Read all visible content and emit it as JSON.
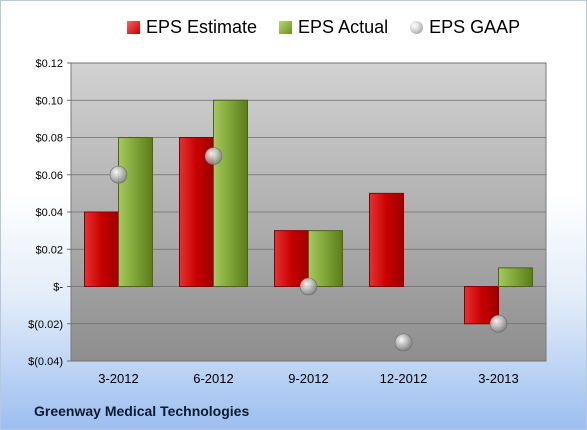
{
  "chart_data": {
    "type": "bar",
    "categories": [
      "3-2012",
      "6-2012",
      "9-2012",
      "12-2012",
      "3-2013"
    ],
    "series": [
      {
        "name": "EPS Estimate",
        "kind": "bar",
        "color": "#c00000",
        "values": [
          0.04,
          0.08,
          0.03,
          0.05,
          -0.02
        ]
      },
      {
        "name": "EPS Actual",
        "kind": "bar",
        "color": "#6a8f22",
        "values": [
          0.08,
          0.1,
          0.03,
          null,
          0.01
        ]
      },
      {
        "name": "EPS GAAP",
        "kind": "scatter",
        "color": "#a0a0a0",
        "values": [
          0.06,
          0.07,
          0.0,
          -0.03,
          -0.02
        ]
      }
    ],
    "ylim": [
      -0.04,
      0.12
    ],
    "yticks": [
      -0.04,
      -0.02,
      0,
      0.02,
      0.04,
      0.06,
      0.08,
      0.1,
      0.12
    ],
    "ytick_labels": [
      "$(0.04)",
      "$(0.02)",
      "$-",
      "$0.02",
      "$0.04",
      "$0.06",
      "$0.08",
      "$0.10",
      "$0.12"
    ],
    "grid": true,
    "legend_position": "top",
    "footer": "Greenway Medical Technologies"
  }
}
